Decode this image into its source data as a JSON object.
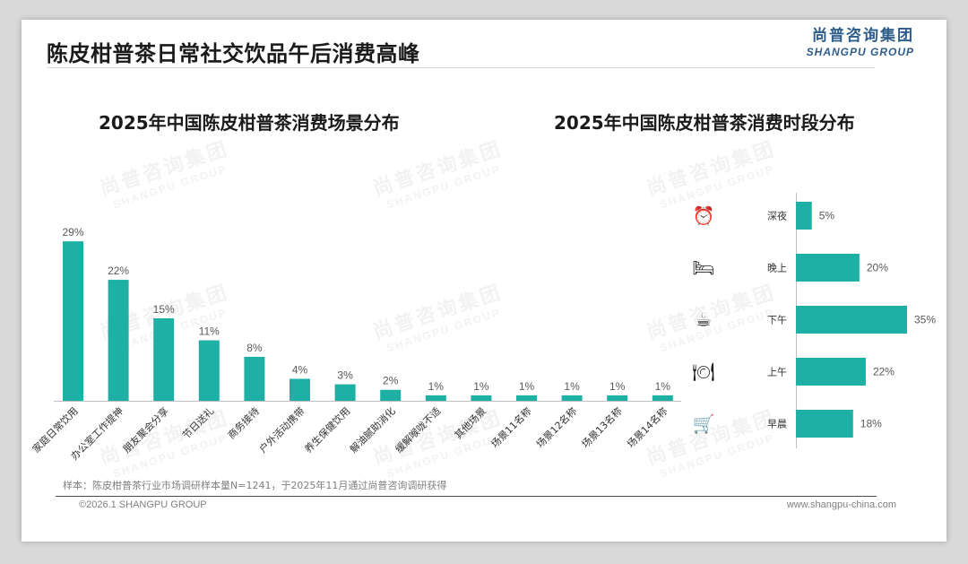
{
  "page": {
    "title": "陈皮柑普茶日常社交饮品午后消费高峰",
    "logo_cn": "尚普咨询集团",
    "logo_en": "SHANGPU GROUP",
    "watermark_cn": "尚普咨询集团",
    "watermark_en": "SHANGPU GROUP",
    "footnote": "样本：陈皮柑普茶行业市场调研样本量N=1241，于2025年11月通过尚普咨询调研获得",
    "copyright": "©2026.1 SHANGPU GROUP",
    "website": "www.shangpu-china.com"
  },
  "colors": {
    "bar": "#1fb0a5",
    "brand": "#2d5d8a"
  },
  "chart_data": [
    {
      "type": "bar",
      "title": "2025年中国陈皮柑普茶消费场景分布",
      "categories": [
        "家庭日常饮用",
        "办公室工作提神",
        "朋友聚会分享",
        "节日送礼",
        "商务接待",
        "户外活动携带",
        "养生保健饮用",
        "解油腻助消化",
        "缓解喉咙不适",
        "其他场景",
        "场景11名称",
        "场景12名称",
        "场景13名称",
        "场景14名称"
      ],
      "values": [
        29,
        22,
        15,
        11,
        8,
        4,
        3,
        2,
        1,
        1,
        1,
        1,
        1,
        1
      ],
      "value_labels": [
        "29%",
        "22%",
        "15%",
        "11%",
        "8%",
        "4%",
        "3%",
        "2%",
        "1%",
        "1%",
        "1%",
        "1%",
        "1%",
        "1%"
      ],
      "ylim": [
        0,
        30
      ]
    },
    {
      "type": "bar",
      "orientation": "horizontal",
      "title": "2025年中国陈皮柑普茶消费时段分布",
      "categories": [
        "深夜",
        "晚上",
        "下午",
        "上午",
        "早晨"
      ],
      "values": [
        5,
        20,
        35,
        22,
        18
      ],
      "value_labels": [
        "5%",
        "20%",
        "35%",
        "22%",
        "18%"
      ],
      "icons": [
        "alarm-clock-icon",
        "bed-icon",
        "coffee-cup-icon",
        "plate-cutlery-icon",
        "shopping-cart-icon"
      ],
      "icon_glyphs": [
        "⏰",
        "🛏",
        "☕",
        "🍽",
        "🛒"
      ],
      "xlim": [
        0,
        35
      ]
    }
  ]
}
